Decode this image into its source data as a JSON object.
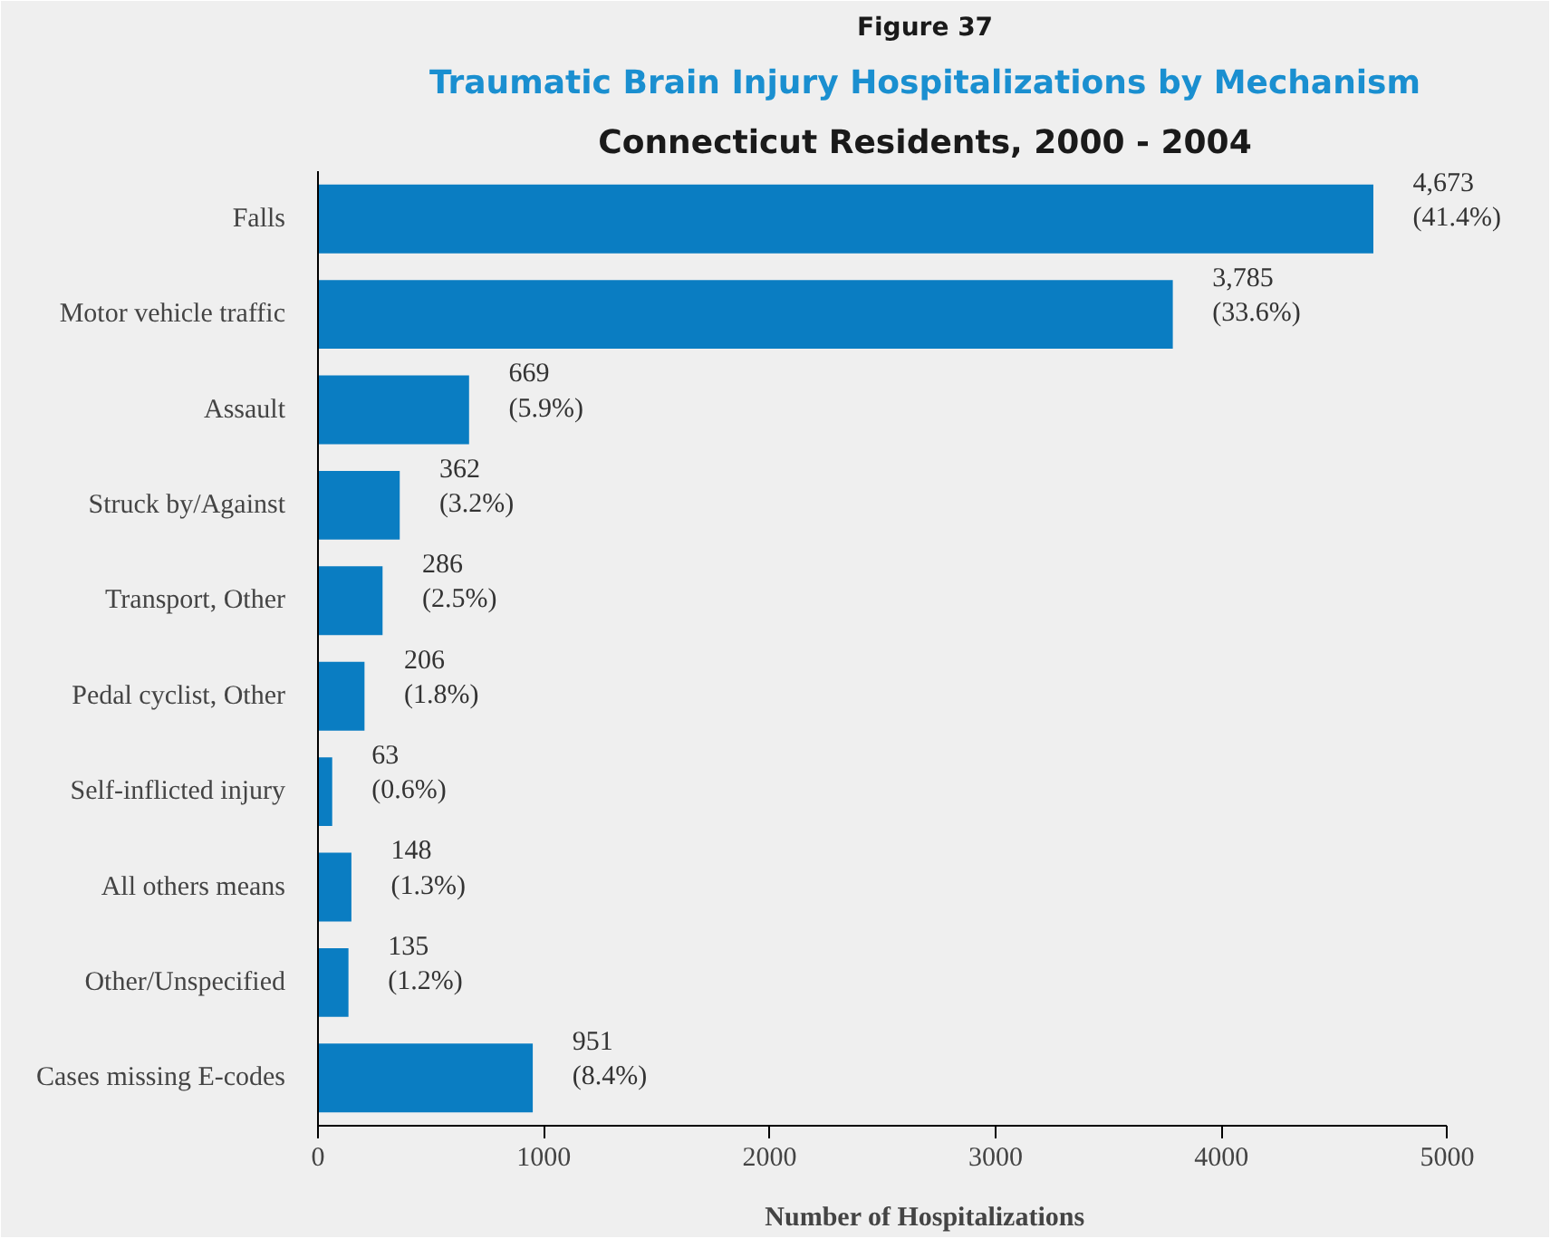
{
  "chart_data": {
    "type": "bar",
    "orientation": "horizontal",
    "title": "Traumatic Brain Injury Hospitalizations by Mechanism",
    "subtitle": "Connecticut Residents, 2000 - 2004",
    "annotations": [
      "Figure 37"
    ],
    "xlabel": "Number of Hospitalizations",
    "categories": [
      "Falls",
      "Motor vehicle traffic",
      "Assault",
      "Struck by/Against",
      "Transport, Other",
      "Pedal cyclist, Other",
      "Self-inflicted injury",
      "All others means",
      "Other/Unspecified",
      "Cases missing E-codes"
    ],
    "values": [
      4673,
      3785,
      669,
      362,
      286,
      206,
      63,
      148,
      135,
      951
    ],
    "value_labels": [
      "4,673\n(41.4%)",
      "3,785\n(33.6%)",
      "669\n(5.9%)",
      "362\n(3.2%)",
      "286\n(2.5%)",
      "206\n(1.8%)",
      "63\n(0.6%)",
      "148\n(1.3%)",
      "135\n(1.2%)",
      "951\n(8.4%)"
    ],
    "color": "#0a7dc2",
    "xlim": [
      0,
      5000
    ],
    "xticks": [
      0,
      1000,
      2000,
      3000,
      4000,
      5000
    ],
    "grid": false
  }
}
